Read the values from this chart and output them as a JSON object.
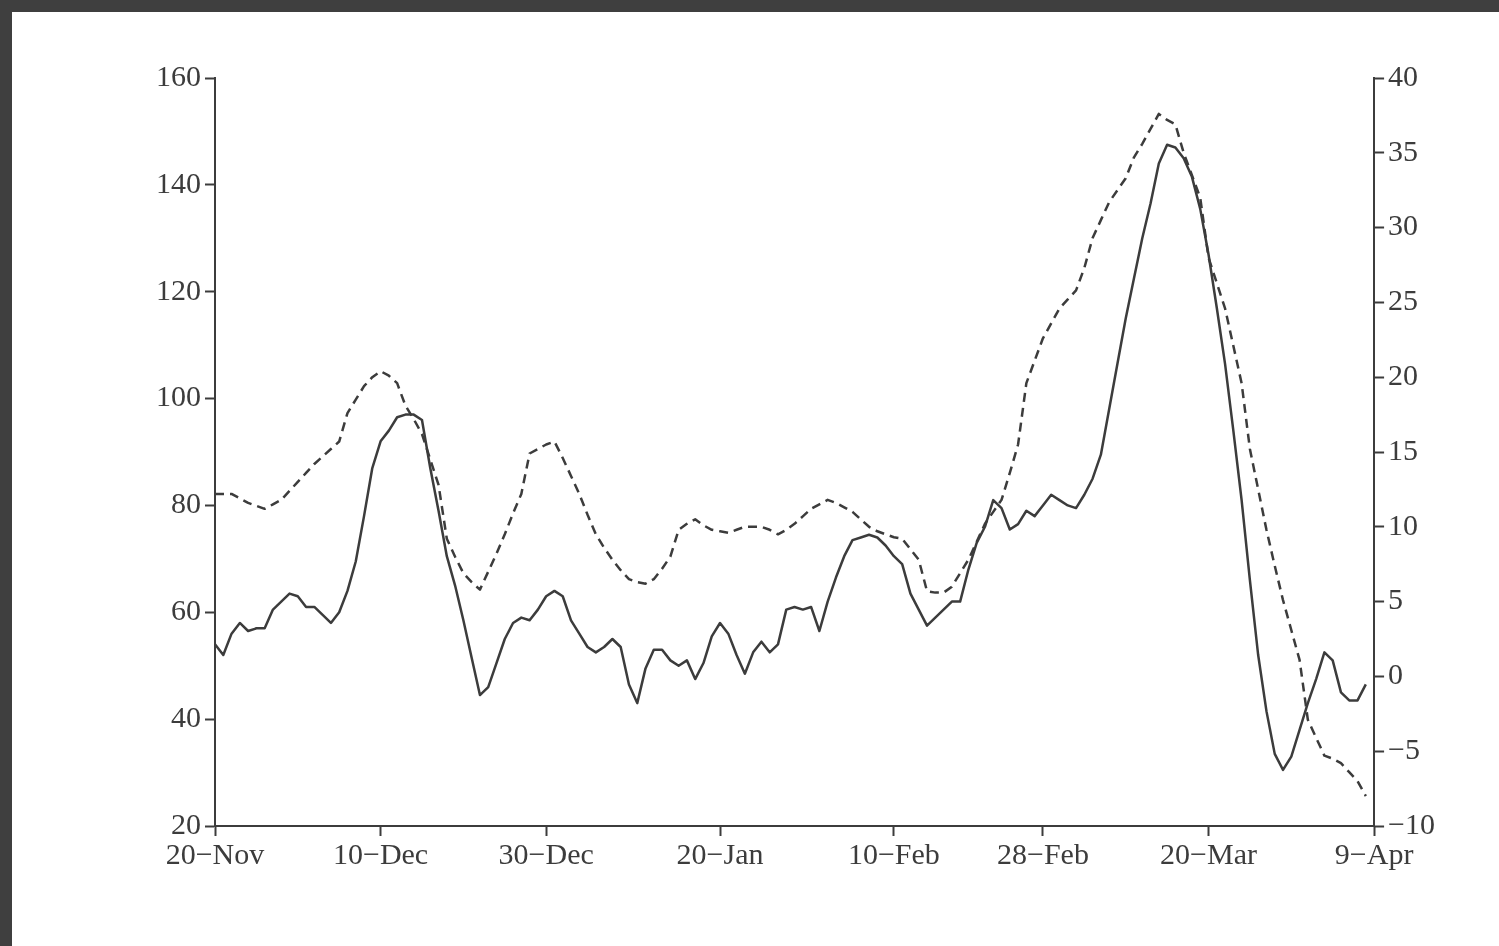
{
  "chart_data": {
    "type": "line",
    "grid": false,
    "legend": false,
    "marker": "none",
    "categories": [
      "20−Nov",
      null,
      null,
      null,
      null,
      null,
      null,
      null,
      null,
      null,
      null,
      null,
      null,
      null,
      null,
      null,
      null,
      null,
      null,
      null,
      "10−Dec",
      null,
      null,
      null,
      null,
      null,
      null,
      null,
      null,
      null,
      null,
      null,
      null,
      null,
      null,
      null,
      null,
      null,
      null,
      null,
      "30−Dec",
      null,
      null,
      null,
      null,
      null,
      null,
      null,
      null,
      null,
      null,
      null,
      null,
      null,
      null,
      null,
      null,
      null,
      null,
      null,
      null,
      "20−Jan",
      null,
      null,
      null,
      null,
      null,
      null,
      null,
      null,
      null,
      null,
      null,
      null,
      null,
      null,
      null,
      null,
      null,
      null,
      null,
      null,
      "10−Feb",
      null,
      null,
      null,
      null,
      null,
      null,
      null,
      null,
      null,
      null,
      null,
      null,
      null,
      null,
      null,
      null,
      null,
      "28−Feb",
      null,
      null,
      null,
      null,
      null,
      null,
      null,
      null,
      null,
      null,
      null,
      null,
      null,
      null,
      null,
      null,
      null,
      null,
      null,
      "20−Mar",
      null,
      null,
      null,
      null,
      null,
      null,
      null,
      null,
      null,
      null,
      null,
      null,
      null,
      null,
      null,
      null,
      null,
      null,
      null,
      "9−Apr"
    ],
    "ylim": [
      20,
      160
    ],
    "yticks": [
      20,
      40,
      60,
      80,
      100,
      120,
      140,
      160
    ],
    "y2lim": [
      -10,
      40
    ],
    "y2ticks": [
      {
        "value": -10,
        "label": "−10"
      },
      {
        "value": -5,
        "label": "−5"
      },
      0,
      5,
      10,
      15,
      20,
      25,
      30,
      35,
      40
    ],
    "series": [
      {
        "color": "#3c3c3c",
        "line_style": "solid",
        "values": [
          54,
          52,
          56,
          58,
          56.5,
          57,
          57,
          60.5,
          62,
          63.5,
          63,
          61,
          61,
          59.5,
          58,
          60,
          64,
          69.5,
          78,
          87,
          92,
          94,
          96.5,
          97,
          97,
          96,
          87,
          79,
          70.5,
          65,
          58.5,
          51.5,
          44.5,
          46,
          50.5,
          55,
          58,
          59,
          58.5,
          60.5,
          63,
          64,
          63,
          58.5,
          56,
          53.5,
          52.5,
          53.5,
          55,
          53.5,
          46.5,
          43,
          49.5,
          53,
          53,
          51,
          50,
          51,
          47.5,
          50.5,
          55.5,
          58,
          56,
          52,
          48.5,
          52.5,
          54.5,
          52.5,
          54,
          60.5,
          61,
          60.5,
          61,
          56.5,
          62,
          66.5,
          70.5,
          73.5,
          74,
          74.5,
          74,
          72.5,
          70.5,
          69,
          63.5,
          60.5,
          57.5,
          59,
          60.5,
          62,
          62,
          68,
          73,
          76,
          81,
          79.5,
          75.5,
          76.5,
          79,
          78,
          80,
          82,
          81,
          80,
          79.5,
          82,
          85,
          89.5,
          98,
          106.5,
          115,
          122.5,
          130,
          136.5,
          144,
          147.5,
          147,
          145,
          141.5,
          135.5,
          127,
          117,
          106.5,
          94,
          81,
          66,
          52,
          41.5,
          33.5,
          30.5,
          33,
          38,
          43,
          47.5,
          52.5,
          51,
          45,
          43.5,
          43.5,
          46.5,
          null
        ]
      },
      {
        "color": "#3c3c3c",
        "line_style": "dashed",
        "axis": "y2",
        "values": [
          12.2,
          12.2,
          12.2,
          11.9,
          11.6,
          11.4,
          11.2,
          11.5,
          11.8,
          12.4,
          13,
          13.6,
          14.2,
          14.7,
          15.2,
          15.7,
          17.6,
          18.5,
          19.4,
          20,
          20.4,
          20.1,
          19.6,
          18.1,
          17.2,
          16.2,
          14.5,
          12.8,
          9.2,
          8,
          6.9,
          6.3,
          5.8,
          7,
          8.2,
          9.5,
          10.9,
          12.2,
          14.9,
          15.2,
          15.5,
          15.7,
          14.6,
          13.4,
          12.2,
          10.8,
          9.5,
          8.6,
          7.8,
          7.1,
          6.5,
          6.3,
          6.2,
          6.5,
          7.2,
          8,
          9.8,
          10.2,
          10.5,
          10.1,
          9.8,
          9.7,
          9.6,
          9.8,
          10,
          10,
          10,
          9.8,
          9.5,
          9.8,
          10.2,
          10.7,
          11.2,
          11.5,
          11.8,
          11.6,
          11.3,
          11,
          10.5,
          10,
          9.7,
          9.5,
          9.3,
          9.2,
          8.5,
          7.8,
          5.7,
          5.6,
          5.6,
          6,
          6.9,
          7.8,
          9,
          10.2,
          11,
          11.8,
          13.6,
          15.5,
          19.6,
          21.1,
          22.6,
          23.6,
          24.6,
          25.2,
          25.8,
          27.3,
          29.3,
          30.5,
          31.7,
          32.5,
          33.3,
          34.7,
          35.6,
          36.6,
          37.6,
          37.2,
          36.9,
          35,
          33.5,
          32,
          28,
          26.3,
          24.6,
          22.1,
          19.6,
          15.2,
          12.5,
          9.8,
          7.4,
          5.1,
          3.1,
          1.1,
          -2.9,
          -4.1,
          -5.3,
          -5.5,
          -5.8,
          -6.4,
          -7,
          -8,
          null
        ]
      }
    ]
  }
}
